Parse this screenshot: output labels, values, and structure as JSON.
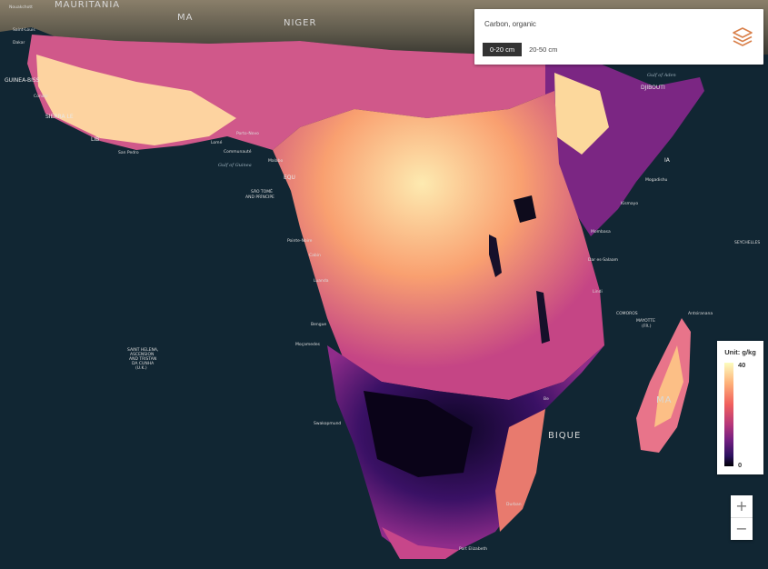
{
  "layer": {
    "title": "Carbon, organic",
    "depths": [
      {
        "label": "0-20 cm",
        "active": true
      },
      {
        "label": "20-50 cm",
        "active": false
      }
    ],
    "icon": "layers-icon",
    "accent": "#d9804a"
  },
  "legend": {
    "title": "Unit: g/kg",
    "max": "40",
    "min": "0",
    "colormap": [
      "#fcfdbf",
      "#feb078",
      "#f1605d",
      "#b5367a",
      "#721f81",
      "#2c115f",
      "#000004"
    ]
  },
  "zoom": {
    "in": "+",
    "out": "−"
  },
  "labels": {
    "nouakchott": "Nouakchott",
    "mauritania": "MAURITANIA",
    "mali": "MA",
    "niger": "NIGER",
    "saint_louis": "Saint-Louis",
    "dakar": "Dakar",
    "guinea_bissau": "GUINEA-BISS",
    "conakry": "Conakr",
    "sierra_leone": "SIERRA LE",
    "liberia": "LIB",
    "san_pedro": "San Pedro",
    "porto_novo": "Porto-Novo",
    "lome": "Lomé",
    "communaute": "Communauté",
    "gulf_of_guinea": "Gulf of Guinea",
    "malabo": "Malabo",
    "equatorial": "EQU",
    "sao_tome": "SÃO TOMÉ",
    "and_principe": "AND PRÍNCIPE",
    "pointe_noire": "Pointe-Noire",
    "cabinda": "Cabin",
    "luanda": "Luanda",
    "benguela": "Bengue",
    "mocamedes": "Moçamedes",
    "saint_helena_1": "SAINT HELENA,",
    "saint_helena_2": "ASCENSION",
    "saint_helena_3": "AND TRISTAN",
    "saint_helena_4": "DA CUNHA",
    "saint_helena_5": "(U.K.)",
    "swakopmund": "Swakopmund",
    "gulf_of_aden": "Gulf of Aden",
    "djibouti": "DJIBOUTI",
    "somalia": "IA",
    "mogadishu": "Mogadishu",
    "kismayo": "Kismayo",
    "mombasa": "Mombasa",
    "dar_es_salaam": "Dar es-Salaam",
    "lindi": "Lindi",
    "seychelles": "SEYCHELLES",
    "comoros": "COMOROS",
    "mayotte_1": "MAYOTTE",
    "mayotte_2": "(FR.)",
    "antsiranana": "Antsiranana",
    "madagascar": "MA",
    "beira": "Be",
    "mozambique": "BIQUE",
    "durban": "Durban",
    "port_elizabeth": "Port Elizabeth"
  }
}
